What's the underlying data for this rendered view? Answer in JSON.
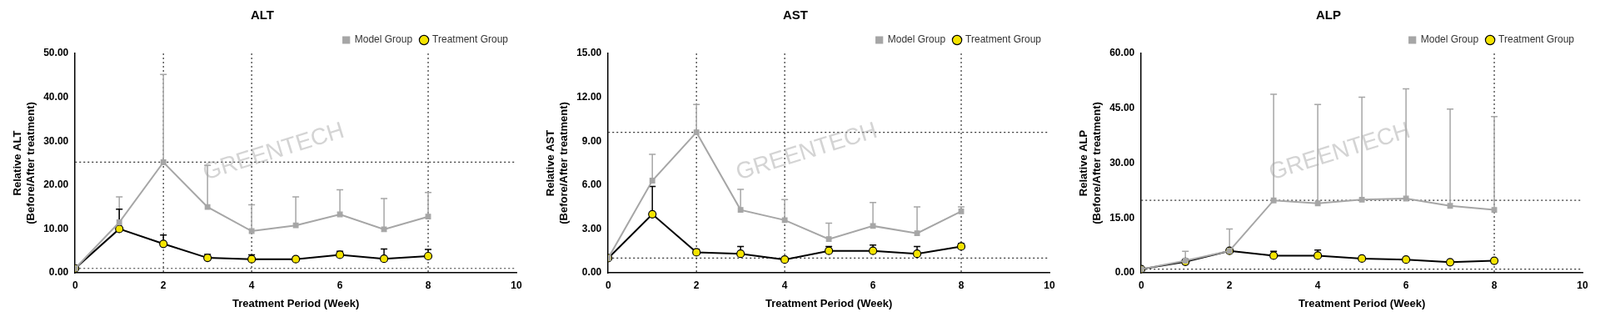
{
  "chart_data": [
    {
      "type": "line",
      "title": "ALT",
      "x_label": "Treatment Period (Week)",
      "y_label": [
        "Relative ALT",
        "(Before/After treatment)"
      ],
      "x": [
        0,
        1,
        2,
        3,
        4,
        5,
        6,
        7,
        8
      ],
      "series": [
        {
          "name": "Model Group",
          "color": "#a6a6a6",
          "marker": "square",
          "values": [
            1,
            11.5,
            25.2,
            15,
            9.5,
            10.8,
            13.3,
            9.9,
            12.8
          ],
          "error": [
            0,
            5.8,
            20,
            9.5,
            6,
            6.5,
            5.6,
            7,
            5.5
          ]
        },
        {
          "name": "Treatment Group",
          "color": "#000000",
          "marker": "circle",
          "values": [
            1,
            10,
            6.6,
            3.4,
            3.1,
            3.1,
            4.1,
            3.2,
            3.8
          ],
          "error": [
            0,
            4.5,
            2,
            0.8,
            1,
            0.5,
            0.8,
            2.2,
            1.5
          ]
        }
      ],
      "xlim": [
        0,
        10
      ],
      "xticks": [
        0,
        2,
        4,
        6,
        8,
        10
      ],
      "ylim": [
        0,
        50
      ],
      "yticks": [
        {
          "value": 0,
          "label": "0.00"
        },
        {
          "value": 10,
          "label": "10.00"
        },
        {
          "value": 20,
          "label": "20.00"
        },
        {
          "value": 30,
          "label": "30.00"
        },
        {
          "value": 40,
          "label": "40.00"
        },
        {
          "value": 50,
          "label": "50.00"
        }
      ],
      "grid": false,
      "legend": "top right",
      "reference_lines": {
        "x": [
          2,
          4,
          8
        ],
        "y": [
          25.2,
          1
        ]
      },
      "annotations": [
        {
          "text": "GREENTECH"
        }
      ]
    },
    {
      "type": "line",
      "title": "AST",
      "x_label": "Treatment Period (Week)",
      "y_label": [
        "Relative AST",
        "(Before/After treatment)"
      ],
      "x": [
        0,
        1,
        2,
        3,
        4,
        5,
        6,
        7,
        8
      ],
      "series": [
        {
          "name": "Model Group",
          "color": "#a6a6a6",
          "marker": "square",
          "values": [
            1,
            6.3,
            9.6,
            4.3,
            3.6,
            2.3,
            3.2,
            2.7,
            4.2
          ],
          "error": [
            0,
            1.8,
            1.9,
            1.4,
            1.4,
            1.1,
            1.6,
            1.8,
            0.3
          ]
        },
        {
          "name": "Treatment Group",
          "color": "#000000",
          "marker": "circle",
          "values": [
            1,
            4,
            1.4,
            1.3,
            0.9,
            1.5,
            1.5,
            1.3,
            1.8
          ],
          "error": [
            0,
            1.9,
            0.2,
            0.5,
            0.1,
            0.3,
            0.4,
            0.5,
            0.2
          ]
        }
      ],
      "xlim": [
        0,
        10
      ],
      "xticks": [
        0,
        2,
        4,
        6,
        8,
        10
      ],
      "ylim": [
        0,
        15
      ],
      "yticks": [
        {
          "value": 0,
          "label": "0.00"
        },
        {
          "value": 3,
          "label": "3.00"
        },
        {
          "value": 6,
          "label": "6.00"
        },
        {
          "value": 9,
          "label": "9.00"
        },
        {
          "value": 12,
          "label": "12.00"
        },
        {
          "value": 15,
          "label": "15.00"
        }
      ],
      "grid": false,
      "legend": "top right",
      "reference_lines": {
        "x": [
          2,
          4,
          8
        ],
        "y": [
          9.6,
          1
        ]
      },
      "annotations": [
        {
          "text": "GREENTECH"
        }
      ]
    },
    {
      "type": "line",
      "title": "ALP",
      "x_label": "Treatment Period (Week)",
      "y_label": [
        "Relative ALP",
        "(Before/After treatment)"
      ],
      "x": [
        0,
        1,
        2,
        3,
        4,
        5,
        6,
        7,
        8
      ],
      "series": [
        {
          "name": "Model Group",
          "color": "#a6a6a6",
          "marker": "square",
          "values": [
            1,
            3.3,
            6,
            19.8,
            19,
            20,
            20.3,
            18.3,
            17.2
          ],
          "error": [
            0,
            2.6,
            6,
            29,
            27,
            28,
            30,
            26.5,
            25.5
          ]
        },
        {
          "name": "Treatment Group",
          "color": "#000000",
          "marker": "circle",
          "values": [
            1,
            3,
            6,
            4.7,
            4.7,
            3.9,
            3.6,
            2.9,
            3.3
          ],
          "error": [
            0,
            0.5,
            0.5,
            1.2,
            1.5,
            0.3,
            0.5,
            0.3,
            0.3
          ]
        }
      ],
      "xlim": [
        0,
        10
      ],
      "xticks": [
        0,
        2,
        4,
        6,
        8,
        10
      ],
      "ylim": [
        0,
        60
      ],
      "yticks": [
        {
          "value": 0,
          "label": "0.00"
        },
        {
          "value": 15,
          "label": "15.00"
        },
        {
          "value": 30,
          "label": "30.00"
        },
        {
          "value": 45,
          "label": "45.00"
        },
        {
          "value": 60,
          "label": "60.00"
        }
      ],
      "grid": false,
      "legend": "top right",
      "reference_lines": {
        "x": [
          8
        ],
        "y": [
          19.8,
          1
        ]
      },
      "annotations": [
        {
          "text": "GREENTECH"
        }
      ]
    }
  ]
}
